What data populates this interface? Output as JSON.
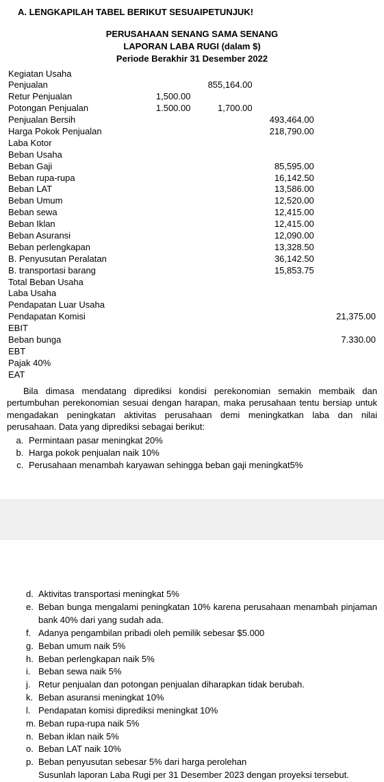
{
  "heading": "A.  LENGKAPILAH TABEL BERIKUT SESUAIPETUNJUK!",
  "title": {
    "line1": "PERUSAHAAN SENANG SAMA SENANG",
    "line2": "LAPORAN LABA RUGI (dalam $)",
    "line3": "Periode Berakhir 31 Desember 2022"
  },
  "rows": [
    {
      "label": "Kegiatan Usaha"
    },
    {
      "label": "Penjualan",
      "c2": "855,164.00"
    },
    {
      "label": "Retur Penjualan",
      "c1": "1,500.00"
    },
    {
      "label": "Potongan Penjualan",
      "c1": "1.500.00",
      "c2": "1,700.00"
    },
    {
      "label": "Penjualan Bersih",
      "c3": "493,464.00"
    },
    {
      "label": "Harga Pokok Penjualan",
      "c3": "218,790.00"
    },
    {
      "label": "Laba Kotor"
    },
    {
      "label": "Beban Usaha"
    },
    {
      "label": "Beban Gaji",
      "c3": "85,595.00"
    },
    {
      "label": "Beban rupa-rupa",
      "c3": "16,142.50"
    },
    {
      "label": "Beban LAT",
      "c3": "13,586.00"
    },
    {
      "label": "Beban Umum",
      "c3": "12,520.00"
    },
    {
      "label": "Beban sewa",
      "c3": "12,415.00"
    },
    {
      "label": "Beban Iklan",
      "c3": "12,415.00"
    },
    {
      "label": "Beban Asuransi",
      "c3": "12,090.00"
    },
    {
      "label": "Beban perlengkapan",
      "c3": "13,328.50"
    },
    {
      "label": "B. Penyusutan Peralatan",
      "c3": "36,142.50"
    },
    {
      "label": "B. transportasi barang",
      "c3": "15,853.75"
    },
    {
      "label": "Total Beban Usaha"
    },
    {
      "label": "Laba Usaha"
    },
    {
      "label": "Pendapatan Luar Usaha"
    },
    {
      "label": "Pendapatan Komisi",
      "c4": "21,375.00"
    },
    {
      "label": "EBIT"
    },
    {
      "label": "Beban bunga",
      "c4": "7.330.00"
    },
    {
      "label": "EBT"
    },
    {
      "label": "Pajak 40%"
    },
    {
      "label": "EAT"
    }
  ],
  "para1": "Bila dimasa mendatang diprediksi kondisi perekonomian semakin membaik dan pertumbuhan perekonomian sesuai dengan harapan, maka perusahaan tentu bersiap untuk mengadakan peningkatan aktivitas perusahaan demi meningkatkan laba dan nilai perusahaan. Data yang diprediksi sebagai berikut:",
  "list1": {
    "a": "Permintaan pasar meningkat 20%",
    "b": "Harga pokok penjualan naik 10%",
    "c": "Perusahaan menambah karyawan sehingga beban gaji meningkat5%"
  },
  "list2": {
    "d": "Aktivitas transportasi meningkat 5%",
    "e": "Beban bunga mengalami peningkatan 10% karena perusahaan menambah pinjaman bank 40% dari yang sudah ada.",
    "f": "Adanya pengambilan pribadi oleh pemilik sebesar $5.000",
    "g": "Beban umum naik 5%",
    "h": "Beban perlengkapan naik 5%",
    "i": "Beban sewa naik 5%",
    "j": "Retur penjualan dan potongan penjualan diharapkan tidak berubah.",
    "k": "Beban asuransi meningkat  10%",
    "l": "Pendapatan komisi diprediksi meningkat 10%",
    "m": "Beban rupa-rupa naik 5%",
    "n": "Beban iklan naik 5%",
    "o": "Beban LAT naik 10%",
    "p": "Beban penyusutan sebesar 5% dari harga perolehan",
    "p2": "Susunlah laporan Laba Rugi per 31 Desember 2023 dengan proyeksi tersebut."
  }
}
